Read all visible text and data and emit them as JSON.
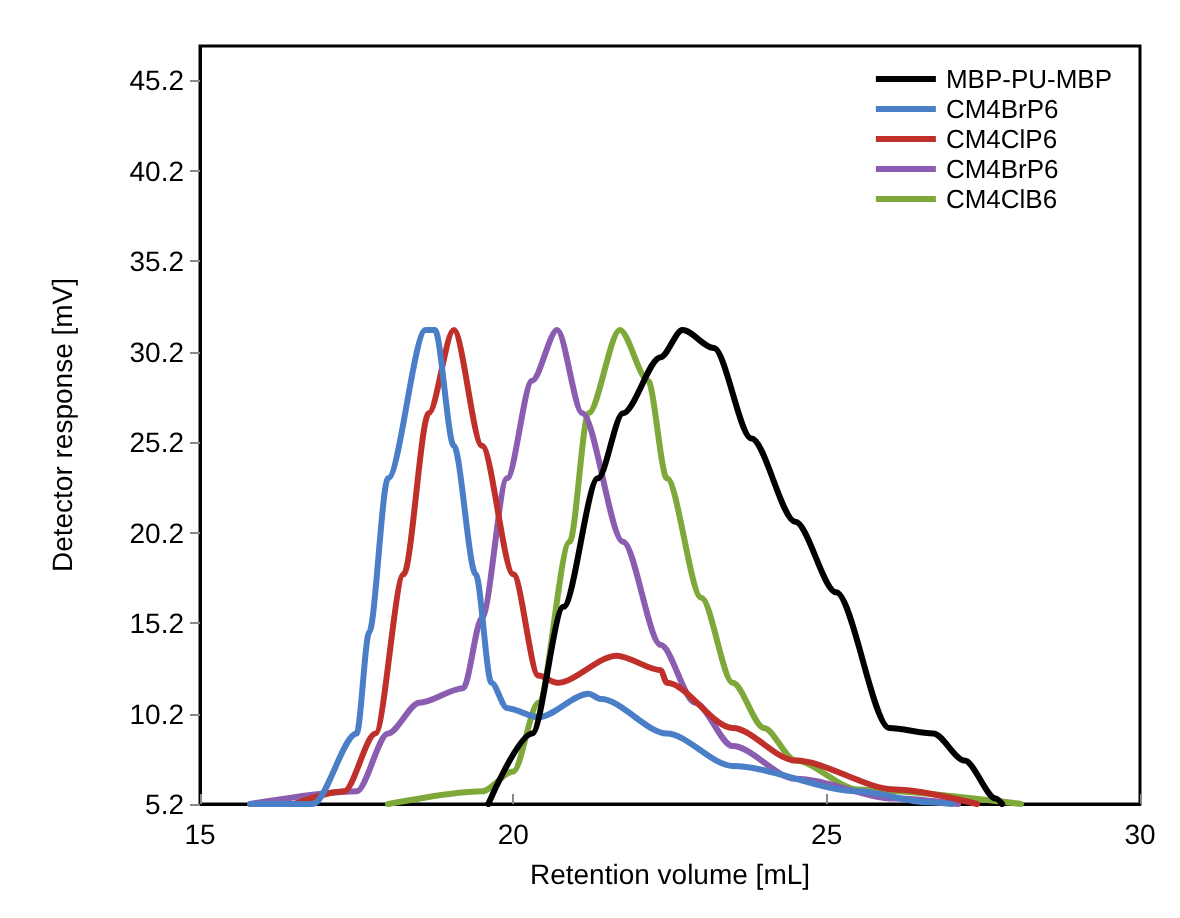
{
  "chart_data": {
    "type": "line",
    "xlabel": "Retention volume [mL]",
    "ylabel": "Detector response [mV]",
    "xlim": [
      15,
      30
    ],
    "xticks": [
      15,
      20,
      25,
      30
    ],
    "ylim": [
      5.2,
      47.1
    ],
    "yticks": [
      5.2,
      10.2,
      15.2,
      20.2,
      25.2,
      30.2,
      35.2,
      40.2,
      45.2
    ],
    "grid": false,
    "legend": "top right",
    "marker": "none",
    "line_style": "solid",
    "series": [
      {
        "name": "MBP-PU-MBP",
        "color": "#000000",
        "x": [
          19.6,
          20.3,
          20.8,
          21.35,
          21.75,
          22.35,
          22.7,
          23.2,
          23.8,
          24.5,
          25.15,
          26.0,
          26.7,
          27.2,
          27.7,
          27.8
        ],
        "values": [
          5.2,
          9.1,
          16.1,
          23.2,
          26.8,
          29.9,
          31.4,
          30.4,
          25.4,
          20.8,
          16.9,
          9.4,
          9.1,
          7.6,
          5.5,
          5.2
        ]
      },
      {
        "name": "CM4BrP6",
        "color": "#4a7fc8",
        "x": [
          15.8,
          16.8,
          17.5,
          17.7,
          18.0,
          18.6,
          18.75,
          19.05,
          19.4,
          19.65,
          19.9,
          20.4,
          21.2,
          21.4,
          22.45,
          23.5,
          25.5,
          26.6,
          27.0
        ],
        "values": [
          5.2,
          5.2,
          9.1,
          14.7,
          23.2,
          31.4,
          31.4,
          25.0,
          17.9,
          11.9,
          10.5,
          10.0,
          11.3,
          11.0,
          9.1,
          7.3,
          5.9,
          5.3,
          5.2
        ]
      },
      {
        "name": "CM4ClP6",
        "color": "#c0302a",
        "x": [
          16.5,
          17.3,
          17.8,
          18.25,
          18.65,
          19.05,
          19.5,
          20.0,
          20.4,
          20.7,
          21.65,
          22.35,
          22.45,
          23.5,
          24.5,
          26.1,
          27.4
        ],
        "values": [
          5.2,
          5.9,
          9.1,
          17.9,
          26.8,
          31.4,
          25.0,
          17.9,
          12.3,
          11.9,
          13.4,
          12.6,
          11.9,
          9.4,
          7.6,
          6.0,
          5.2
        ]
      },
      {
        "name": "CM4BrP6",
        "color": "#8a5db0",
        "x": [
          15.8,
          17.5,
          18.0,
          18.5,
          19.2,
          19.5,
          19.9,
          20.3,
          20.7,
          21.1,
          21.75,
          22.35,
          22.9,
          23.5,
          24.5,
          26.1,
          27.1
        ],
        "values": [
          5.2,
          5.9,
          9.1,
          10.8,
          11.6,
          15.5,
          23.2,
          28.6,
          31.4,
          26.8,
          19.7,
          14.0,
          10.8,
          8.4,
          6.6,
          5.5,
          5.2
        ]
      },
      {
        "name": "CM4ClB6",
        "color": "#7fa83a",
        "x": [
          18.0,
          19.5,
          20.0,
          20.4,
          20.9,
          21.2,
          21.7,
          22.15,
          22.45,
          23.0,
          23.5,
          24.0,
          24.5,
          25.5,
          28.1
        ],
        "values": [
          5.2,
          5.9,
          7.0,
          10.8,
          19.7,
          26.8,
          31.4,
          28.6,
          23.2,
          16.6,
          11.9,
          9.4,
          7.6,
          6.0,
          5.2
        ]
      }
    ]
  }
}
